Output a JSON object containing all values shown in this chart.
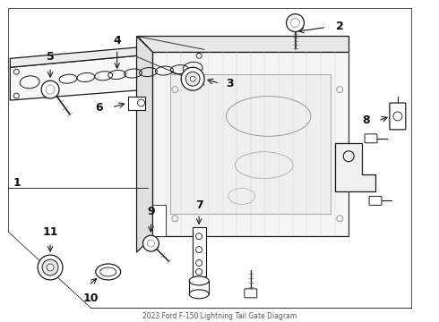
{
  "title": "2023 Ford F-150 Lightning Tail Gate Diagram",
  "bg_color": "#ffffff",
  "line_color": "#1a1a1a",
  "figsize": [
    4.9,
    3.6
  ],
  "dpi": 100
}
